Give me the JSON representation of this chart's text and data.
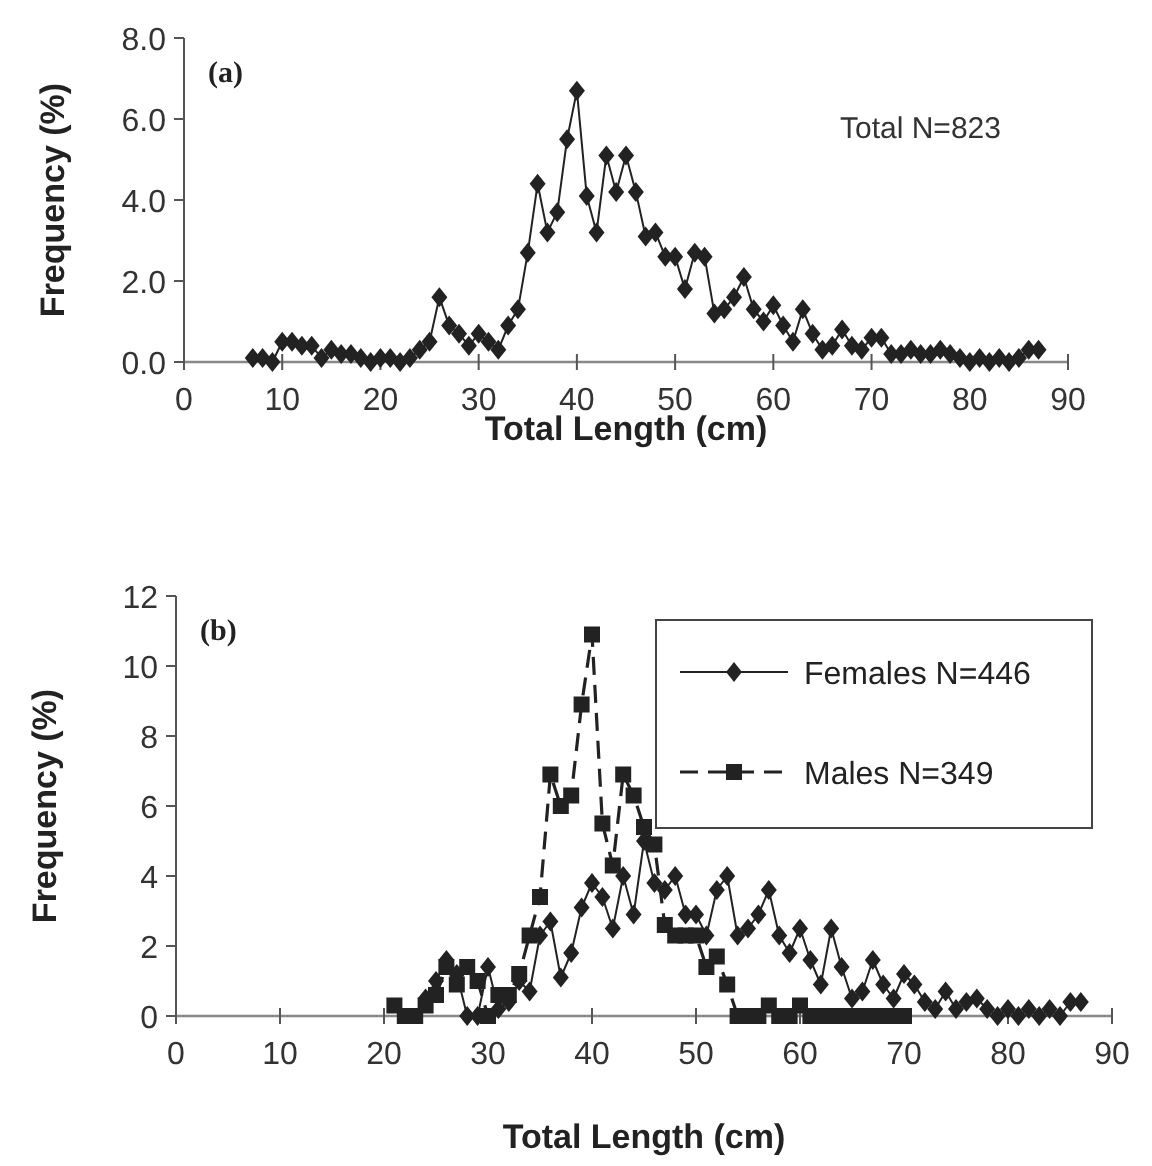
{
  "chart_data": [
    {
      "type": "line",
      "xlabel": "Total Length (cm)",
      "ylabel": "Frequency (%)",
      "annotations": [
        "(a)",
        "Total N=823"
      ],
      "xlim": [
        0,
        90
      ],
      "xticks": [
        0,
        10,
        20,
        30,
        40,
        50,
        60,
        70,
        80,
        90
      ],
      "ylim": [
        0,
        8
      ],
      "yticks": [
        {
          "value": 0,
          "label": "0.0"
        },
        {
          "value": 2,
          "label": "2.0"
        },
        {
          "value": 4,
          "label": "4.0"
        },
        {
          "value": 6,
          "label": "6.0"
        },
        {
          "value": 8,
          "label": "8.0"
        }
      ],
      "grid": false,
      "legend": false,
      "marker": "diamond",
      "line_style": "solid",
      "series": [
        {
          "color": "#222222",
          "x": [
            7,
            8,
            9,
            10,
            11,
            12,
            13,
            14,
            15,
            16,
            17,
            18,
            19,
            20,
            21,
            22,
            23,
            24,
            25,
            26,
            27,
            28,
            29,
            30,
            31,
            32,
            33,
            34,
            35,
            36,
            37,
            38,
            39,
            40,
            41,
            42,
            43,
            44,
            45,
            46,
            47,
            48,
            49,
            50,
            51,
            52,
            53,
            54,
            55,
            56,
            57,
            58,
            59,
            60,
            61,
            62,
            63,
            64,
            65,
            66,
            67,
            68,
            69,
            70,
            71,
            72,
            73,
            74,
            75,
            76,
            77,
            78,
            79,
            80,
            81,
            82,
            83,
            84,
            85,
            86,
            87
          ],
          "values": [
            0.1,
            0.1,
            0.0,
            0.5,
            0.5,
            0.4,
            0.4,
            0.1,
            0.3,
            0.2,
            0.2,
            0.1,
            0.0,
            0.1,
            0.1,
            0.0,
            0.1,
            0.3,
            0.5,
            1.6,
            0.9,
            0.7,
            0.4,
            0.7,
            0.5,
            0.3,
            0.9,
            1.3,
            2.7,
            4.4,
            3.2,
            3.7,
            5.5,
            6.7,
            4.1,
            3.2,
            5.1,
            4.2,
            5.1,
            4.2,
            3.1,
            3.2,
            2.6,
            2.6,
            1.8,
            2.7,
            2.6,
            1.2,
            1.3,
            1.6,
            2.1,
            1.3,
            1.0,
            1.4,
            0.9,
            0.5,
            1.3,
            0.7,
            0.3,
            0.4,
            0.8,
            0.4,
            0.3,
            0.6,
            0.6,
            0.2,
            0.2,
            0.3,
            0.2,
            0.2,
            0.3,
            0.2,
            0.1,
            0.0,
            0.1,
            0.0,
            0.1,
            0.0,
            0.1,
            0.3,
            0.3
          ]
        }
      ]
    },
    {
      "type": "line",
      "xlabel": "Total Length (cm)",
      "ylabel": "Frequency (%)",
      "annotations": [
        "(b)"
      ],
      "xlim": [
        0,
        90
      ],
      "xticks": [
        0,
        10,
        20,
        30,
        40,
        50,
        60,
        70,
        80,
        90
      ],
      "ylim": [
        0,
        12
      ],
      "yticks": [
        0,
        2,
        4,
        6,
        8,
        10,
        12
      ],
      "grid": false,
      "legend": "top right",
      "series": [
        {
          "name": "Females N=446",
          "color": "#222222",
          "marker": "diamond",
          "line_style": "solid",
          "x": [
            24,
            25,
            26,
            27,
            28,
            29,
            30,
            31,
            32,
            33,
            34,
            35,
            36,
            37,
            38,
            39,
            40,
            41,
            42,
            43,
            44,
            45,
            46,
            47,
            48,
            49,
            50,
            51,
            52,
            53,
            54,
            55,
            56,
            57,
            58,
            59,
            60,
            61,
            62,
            63,
            64,
            65,
            66,
            67,
            68,
            69,
            70,
            71,
            72,
            73,
            74,
            75,
            76,
            77,
            78,
            79,
            80,
            81,
            82,
            83,
            84,
            85,
            86,
            87
          ],
          "values": [
            0.5,
            1.0,
            1.6,
            1.2,
            0.0,
            0.0,
            1.4,
            0.2,
            0.4,
            1.0,
            0.7,
            2.3,
            2.7,
            1.1,
            1.8,
            3.1,
            3.8,
            3.4,
            2.5,
            4.0,
            2.9,
            5.0,
            3.8,
            3.6,
            4.0,
            2.9,
            2.9,
            2.3,
            3.6,
            4.0,
            2.3,
            2.5,
            2.9,
            3.6,
            2.3,
            1.8,
            2.5,
            1.6,
            0.9,
            2.5,
            1.4,
            0.5,
            0.7,
            1.6,
            0.9,
            0.5,
            1.2,
            0.9,
            0.4,
            0.2,
            0.7,
            0.2,
            0.4,
            0.5,
            0.2,
            0.0,
            0.2,
            0.0,
            0.2,
            0.0,
            0.2,
            0.0,
            0.4,
            0.4
          ]
        },
        {
          "name": "Males N=349",
          "color": "#222222",
          "marker": "square",
          "line_style": "dashed",
          "x": [
            21,
            22,
            23,
            24,
            25,
            26,
            27,
            28,
            29,
            30,
            31,
            32,
            33,
            34,
            35,
            36,
            37,
            38,
            39,
            40,
            41,
            42,
            43,
            44,
            45,
            46,
            47,
            48,
            49,
            50,
            51,
            52,
            53,
            54,
            55,
            56,
            57,
            58,
            59,
            60,
            61,
            62,
            63,
            64,
            65,
            66,
            67,
            68,
            69,
            70
          ],
          "values": [
            0.3,
            0.0,
            0.0,
            0.3,
            0.6,
            1.4,
            0.9,
            1.4,
            1.0,
            0.0,
            0.6,
            0.6,
            1.2,
            2.3,
            3.4,
            6.9,
            6.0,
            6.3,
            8.9,
            10.9,
            5.5,
            4.3,
            6.9,
            6.3,
            5.4,
            4.9,
            2.6,
            2.3,
            2.3,
            2.3,
            1.4,
            1.7,
            0.9,
            0.0,
            0.0,
            0.0,
            0.3,
            0.0,
            0.0,
            0.3,
            0.0,
            0.0,
            0.0,
            0.0,
            0.0,
            0.0,
            0.0,
            0.0,
            0.0,
            0.0
          ]
        }
      ]
    }
  ]
}
